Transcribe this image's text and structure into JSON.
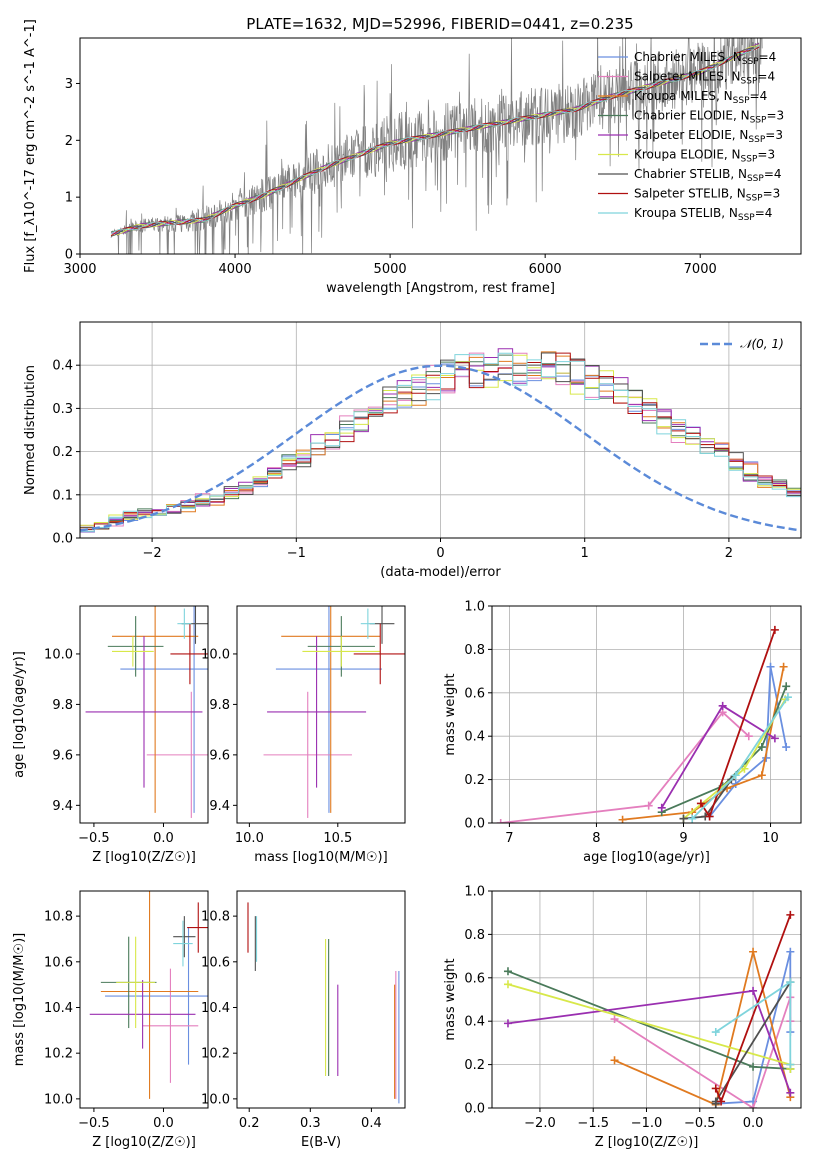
{
  "title": "PLATE=1632, MJD=52996, FIBERID=0441, z=0.235",
  "colors": {
    "grid": "#b0b0b0",
    "data_grey": "#808080",
    "gaussian": "#5b8ad8",
    "models": [
      "#6a8fe0",
      "#e47fbe",
      "#e07a20",
      "#4a7a5a",
      "#9a2fb0",
      "#d8e84a",
      "#505050",
      "#b01010",
      "#7fd4dc"
    ]
  },
  "models": [
    {
      "label": "Chabrier MILES, N",
      "sub": "SSP",
      "suffix": "=4"
    },
    {
      "label": "Salpeter MILES, N",
      "sub": "SSP",
      "suffix": "=4"
    },
    {
      "label": "Kroupa MILES, N",
      "sub": "SSP",
      "suffix": "=4"
    },
    {
      "label": "Chabrier ELODIE, N",
      "sub": "SSP",
      "suffix": "=3"
    },
    {
      "label": "Salpeter ELODIE, N",
      "sub": "SSP",
      "suffix": "=3"
    },
    {
      "label": "Kroupa ELODIE, N",
      "sub": "SSP",
      "suffix": "=3"
    },
    {
      "label": "Chabrier STELIB, N",
      "sub": "SSP",
      "suffix": "=4"
    },
    {
      "label": "Salpeter STELIB, N",
      "sub": "SSP",
      "suffix": "=3"
    },
    {
      "label": "Kroupa STELIB, N",
      "sub": "SSP",
      "suffix": "=4"
    }
  ],
  "chart_data": [
    {
      "id": "spectrum",
      "type": "line",
      "xlabel": "wavelength [Angstrom, rest frame]",
      "ylabel": "Flux [f_λ10^-17 erg cm^-2 s^-1 A^-1]",
      "xlim": [
        3000,
        7650
      ],
      "ylim": [
        0,
        3.8
      ],
      "xticks": [
        "3000",
        "4000",
        "5000",
        "6000",
        "7000"
      ],
      "xtick_values": [
        3000,
        4000,
        5000,
        6000,
        7000
      ],
      "yticks": [
        "0",
        "1",
        "2",
        "3"
      ],
      "ytick_values": [
        0,
        1,
        2,
        3
      ],
      "continuum": {
        "x": [
          3200,
          3400,
          3600,
          3800,
          4000,
          4200,
          4400,
          4600,
          4800,
          5000,
          5200,
          5400,
          5600,
          5800,
          6000,
          6200,
          6400,
          6600,
          6800,
          7000,
          7200,
          7400
        ],
        "y": [
          0.35,
          0.5,
          0.55,
          0.6,
          0.85,
          1.05,
          1.3,
          1.55,
          1.75,
          1.95,
          2.05,
          2.15,
          2.25,
          2.35,
          2.45,
          2.55,
          2.75,
          2.9,
          3.05,
          3.2,
          3.45,
          3.7
        ]
      },
      "grid": false,
      "legend": "right"
    },
    {
      "id": "residuals",
      "type": "step",
      "xlabel": "(data-model)/error",
      "ylabel": "Normed distribution",
      "xlim": [
        -2.5,
        2.5
      ],
      "ylim": [
        0,
        0.5
      ],
      "xticks": [
        "−2",
        "−1",
        "0",
        "1",
        "2"
      ],
      "xtick_values": [
        -2,
        -1,
        0,
        1,
        2
      ],
      "yticks": [
        "0.0",
        "0.1",
        "0.2",
        "0.3",
        "0.4"
      ],
      "ytick_values": [
        0,
        0.1,
        0.2,
        0.3,
        0.4
      ],
      "gaussian_label": "𝒩(0, 1)",
      "bin_edges_start": -2.5,
      "bin_width": 0.1,
      "base_values": [
        0.025,
        0.03,
        0.04,
        0.05,
        0.055,
        0.06,
        0.065,
        0.075,
        0.085,
        0.09,
        0.1,
        0.115,
        0.13,
        0.15,
        0.17,
        0.19,
        0.21,
        0.23,
        0.25,
        0.27,
        0.29,
        0.31,
        0.33,
        0.345,
        0.36,
        0.375,
        0.385,
        0.39,
        0.395,
        0.4,
        0.4,
        0.4,
        0.395,
        0.39,
        0.38,
        0.365,
        0.35,
        0.335,
        0.315,
        0.295,
        0.275,
        0.255,
        0.235,
        0.215,
        0.195,
        0.175,
        0.155,
        0.135,
        0.12,
        0.105,
        0.09,
        0.08,
        0.07,
        0.06,
        0.055,
        0.05,
        0.045,
        0.04,
        0.035,
        0.03
      ],
      "grid": true,
      "legend": "top-right"
    },
    {
      "id": "age_vs_Z",
      "type": "errorbar",
      "xlabel": "Z [log10(Z/Z☉)]",
      "ylabel": "age [log10(age/yr)]",
      "xlim": [
        -0.6,
        0.32
      ],
      "ylim": [
        9.33,
        10.19
      ],
      "xticks": [
        "−0.5",
        "0.0"
      ],
      "xtick_values": [
        -0.5,
        0
      ],
      "yticks": [
        "9.4",
        "9.6",
        "9.8",
        "10.0"
      ],
      "ytick_values": [
        9.4,
        9.6,
        9.8,
        10.0
      ],
      "points": [
        {
          "x": 0.22,
          "y": 9.94,
          "xerr": 0.53,
          "yerr": 0.57
        },
        {
          "x": 0.2,
          "y": 9.6,
          "xerr": 0.32,
          "yerr": 0.25
        },
        {
          "x": -0.06,
          "y": 10.07,
          "xerr": 0.31,
          "yerr": 0.7
        },
        {
          "x": -0.2,
          "y": 10.03,
          "xerr": 0.2,
          "yerr": 0.12
        },
        {
          "x": -0.14,
          "y": 9.77,
          "xerr": 0.42,
          "yerr": 0.3
        },
        {
          "x": -0.22,
          "y": 10.01,
          "xerr": 0.15,
          "yerr": 0.06
        },
        {
          "x": 0.23,
          "y": 10.12,
          "xerr": 0.1,
          "yerr": 0.08
        },
        {
          "x": 0.19,
          "y": 10.0,
          "xerr": 0.14,
          "yerr": 0.12
        },
        {
          "x": 0.15,
          "y": 10.12,
          "xerr": 0.05,
          "yerr": 0.06
        }
      ]
    },
    {
      "id": "age_vs_mass",
      "type": "errorbar",
      "xlabel": "mass [log10(M/M☉)]",
      "ylabel": "",
      "xlim": [
        9.93,
        10.88
      ],
      "ylim": [
        9.33,
        10.19
      ],
      "xticks": [
        "10.0",
        "10.5"
      ],
      "xtick_values": [
        10,
        10.5
      ],
      "yticks": [
        "9.4",
        "9.6",
        "9.8",
        "10.0"
      ],
      "ytick_values": [
        9.4,
        9.6,
        9.8,
        10.0
      ],
      "points": [
        {
          "x": 10.45,
          "y": 9.94,
          "xerr": 0.3,
          "yerr": 0.57
        },
        {
          "x": 10.33,
          "y": 9.6,
          "xerr": 0.25,
          "yerr": 0.25
        },
        {
          "x": 10.46,
          "y": 10.07,
          "xerr": 0.28,
          "yerr": 0.7
        },
        {
          "x": 10.52,
          "y": 10.03,
          "xerr": 0.19,
          "yerr": 0.12
        },
        {
          "x": 10.38,
          "y": 9.77,
          "xerr": 0.28,
          "yerr": 0.3
        },
        {
          "x": 10.52,
          "y": 10.01,
          "xerr": 0.22,
          "yerr": 0.06
        },
        {
          "x": 10.75,
          "y": 10.12,
          "xerr": 0.07,
          "yerr": 0.08
        },
        {
          "x": 10.74,
          "y": 10.0,
          "xerr": 0.15,
          "yerr": 0.12
        },
        {
          "x": 10.67,
          "y": 10.12,
          "xerr": 0.04,
          "yerr": 0.06
        }
      ]
    },
    {
      "id": "weight_vs_age",
      "type": "line",
      "xlabel": "age [log10(age/yr)]",
      "ylabel": "mass weight",
      "xlim": [
        6.8,
        10.35
      ],
      "ylim": [
        0,
        1
      ],
      "xticks": [
        "7",
        "8",
        "9",
        "10"
      ],
      "xtick_values": [
        7,
        8,
        9,
        10
      ],
      "yticks": [
        "0.0",
        "0.2",
        "0.4",
        "0.6",
        "0.8",
        "1.0"
      ],
      "ytick_values": [
        0,
        0.2,
        0.4,
        0.6,
        0.8,
        1.0
      ],
      "series": [
        {
          "x": [
            9.3,
            9.6,
            9.95,
            10.0,
            10.18
          ],
          "y": [
            0.03,
            0.18,
            0.3,
            0.72,
            0.35
          ]
        },
        {
          "x": [
            6.9,
            8.6,
            9.45,
            9.75
          ],
          "y": [
            0.0,
            0.08,
            0.51,
            0.4
          ]
        },
        {
          "x": [
            8.3,
            9.1,
            9.5,
            9.9,
            10.15
          ],
          "y": [
            0.015,
            0.05,
            0.16,
            0.22,
            0.72
          ]
        },
        {
          "x": [
            8.75,
            9.45,
            9.9,
            10.18
          ],
          "y": [
            0.05,
            0.17,
            0.35,
            0.63
          ]
        },
        {
          "x": [
            8.75,
            9.45,
            10.05
          ],
          "y": [
            0.07,
            0.54,
            0.39
          ]
        },
        {
          "x": [
            9.0,
            9.7,
            10.17
          ],
          "y": [
            0.02,
            0.25,
            0.57
          ]
        },
        {
          "x": [
            9.0,
            9.25,
            9.55
          ],
          "y": [
            0.02,
            0.03,
            0.2
          ]
        },
        {
          "x": [
            9.2,
            9.3,
            10.05
          ],
          "y": [
            0.09,
            0.03,
            0.89
          ]
        },
        {
          "x": [
            9.1,
            9.6,
            10.2
          ],
          "y": [
            0.02,
            0.22,
            0.58
          ]
        }
      ],
      "grid": true
    },
    {
      "id": "mass_vs_Z",
      "type": "errorbar",
      "xlabel": "Z [log10(Z/Z☉)]",
      "ylabel": "mass [log10(M/M☉)]",
      "xlim": [
        -0.6,
        0.32
      ],
      "ylim": [
        9.96,
        10.91
      ],
      "xticks": [
        "−0.5",
        "0.0"
      ],
      "xtick_values": [
        -0.5,
        0
      ],
      "yticks": [
        "10.0",
        "10.2",
        "10.4",
        "10.6",
        "10.8"
      ],
      "ytick_values": [
        10,
        10.2,
        10.4,
        10.6,
        10.8
      ],
      "points": [
        {
          "x": 0.18,
          "y": 10.45,
          "xerr": 0.6,
          "yerr": 0.3
        },
        {
          "x": 0.05,
          "y": 10.32,
          "xerr": 0.2,
          "yerr": 0.25
        },
        {
          "x": -0.1,
          "y": 10.47,
          "xerr": 0.35,
          "yerr": 0.47
        },
        {
          "x": -0.25,
          "y": 10.51,
          "xerr": 0.2,
          "yerr": 0.2
        },
        {
          "x": -0.15,
          "y": 10.37,
          "xerr": 0.38,
          "yerr": 0.15
        },
        {
          "x": -0.2,
          "y": 10.51,
          "xerr": 0.14,
          "yerr": 0.2
        },
        {
          "x": 0.15,
          "y": 10.71,
          "xerr": 0.08,
          "yerr": 0.09
        },
        {
          "x": 0.25,
          "y": 10.75,
          "xerr": 0.08,
          "yerr": 0.11
        },
        {
          "x": 0.14,
          "y": 10.68,
          "xerr": 0.07,
          "yerr": 0.1
        }
      ]
    },
    {
      "id": "mass_vs_ebv",
      "type": "errorbar",
      "xlabel": "E(B-V)",
      "ylabel": "",
      "xlim": [
        0.18,
        0.455
      ],
      "ylim": [
        9.96,
        10.91
      ],
      "xticks": [
        "0.2",
        "0.3",
        "0.4"
      ],
      "xtick_values": [
        0.2,
        0.3,
        0.4
      ],
      "yticks": [
        "10.0",
        "10.2",
        "10.4",
        "10.6",
        "10.8"
      ],
      "ytick_values": [
        10,
        10.2,
        10.4,
        10.6,
        10.8
      ],
      "points": [
        {
          "x": 0.445,
          "y": 10.27,
          "xerr": 0,
          "yerr": 0.29
        },
        {
          "x": 0.44,
          "y": 10.28,
          "xerr": 0,
          "yerr": 0.28
        },
        {
          "x": 0.438,
          "y": 10.25,
          "xerr": 0,
          "yerr": 0.25
        },
        {
          "x": 0.33,
          "y": 10.4,
          "xerr": 0,
          "yerr": 0.3
        },
        {
          "x": 0.345,
          "y": 10.3,
          "xerr": 0,
          "yerr": 0.2
        },
        {
          "x": 0.325,
          "y": 10.4,
          "xerr": 0,
          "yerr": 0.3
        },
        {
          "x": 0.21,
          "y": 10.68,
          "xerr": 0,
          "yerr": 0.12
        },
        {
          "x": 0.198,
          "y": 10.75,
          "xerr": 0,
          "yerr": 0.11
        },
        {
          "x": 0.212,
          "y": 10.7,
          "xerr": 0,
          "yerr": 0.1
        }
      ]
    },
    {
      "id": "weight_vs_Z",
      "type": "line",
      "xlabel": "Z [log10(Z/Z☉)]",
      "ylabel": "mass weight",
      "xlim": [
        -2.45,
        0.45
      ],
      "ylim": [
        0,
        1
      ],
      "xticks": [
        "−2.0",
        "−1.5",
        "−1.0",
        "−0.5",
        "0.0"
      ],
      "xtick_values": [
        -2,
        -1.5,
        -1,
        -0.5,
        0
      ],
      "yticks": [
        "0.0",
        "0.2",
        "0.4",
        "0.6",
        "0.8",
        "1.0"
      ],
      "ytick_values": [
        0,
        0.2,
        0.4,
        0.6,
        0.8,
        1.0
      ],
      "series": [
        {
          "x": [
            -0.35,
            0.0,
            0.35,
            0.35
          ],
          "y": [
            0.02,
            0.03,
            0.72,
            0.35
          ]
        },
        {
          "x": [
            -1.3,
            0.0,
            0.35,
            0.35
          ],
          "y": [
            0.41,
            0.0,
            0.51,
            0.4
          ]
        },
        {
          "x": [
            -1.3,
            -0.35,
            0.0,
            0.35
          ],
          "y": [
            0.22,
            0.015,
            0.72,
            0.05
          ]
        },
        {
          "x": [
            -2.3,
            0.0,
            0.35
          ],
          "y": [
            0.63,
            0.19,
            0.18
          ]
        },
        {
          "x": [
            -2.3,
            0.0,
            0.35
          ],
          "y": [
            0.39,
            0.54,
            0.07
          ]
        },
        {
          "x": [
            -2.3,
            0.35,
            0.35
          ],
          "y": [
            0.57,
            0.2,
            0.18
          ]
        },
        {
          "x": [
            -0.35,
            -0.35,
            0.35
          ],
          "y": [
            0.02,
            0.03,
            0.58
          ]
        },
        {
          "x": [
            -0.35,
            -0.3,
            0.35
          ],
          "y": [
            0.09,
            0.03,
            0.89
          ]
        },
        {
          "x": [
            -0.35,
            0.35,
            0.35
          ],
          "y": [
            0.35,
            0.58,
            0.2
          ]
        }
      ],
      "grid": true
    }
  ]
}
